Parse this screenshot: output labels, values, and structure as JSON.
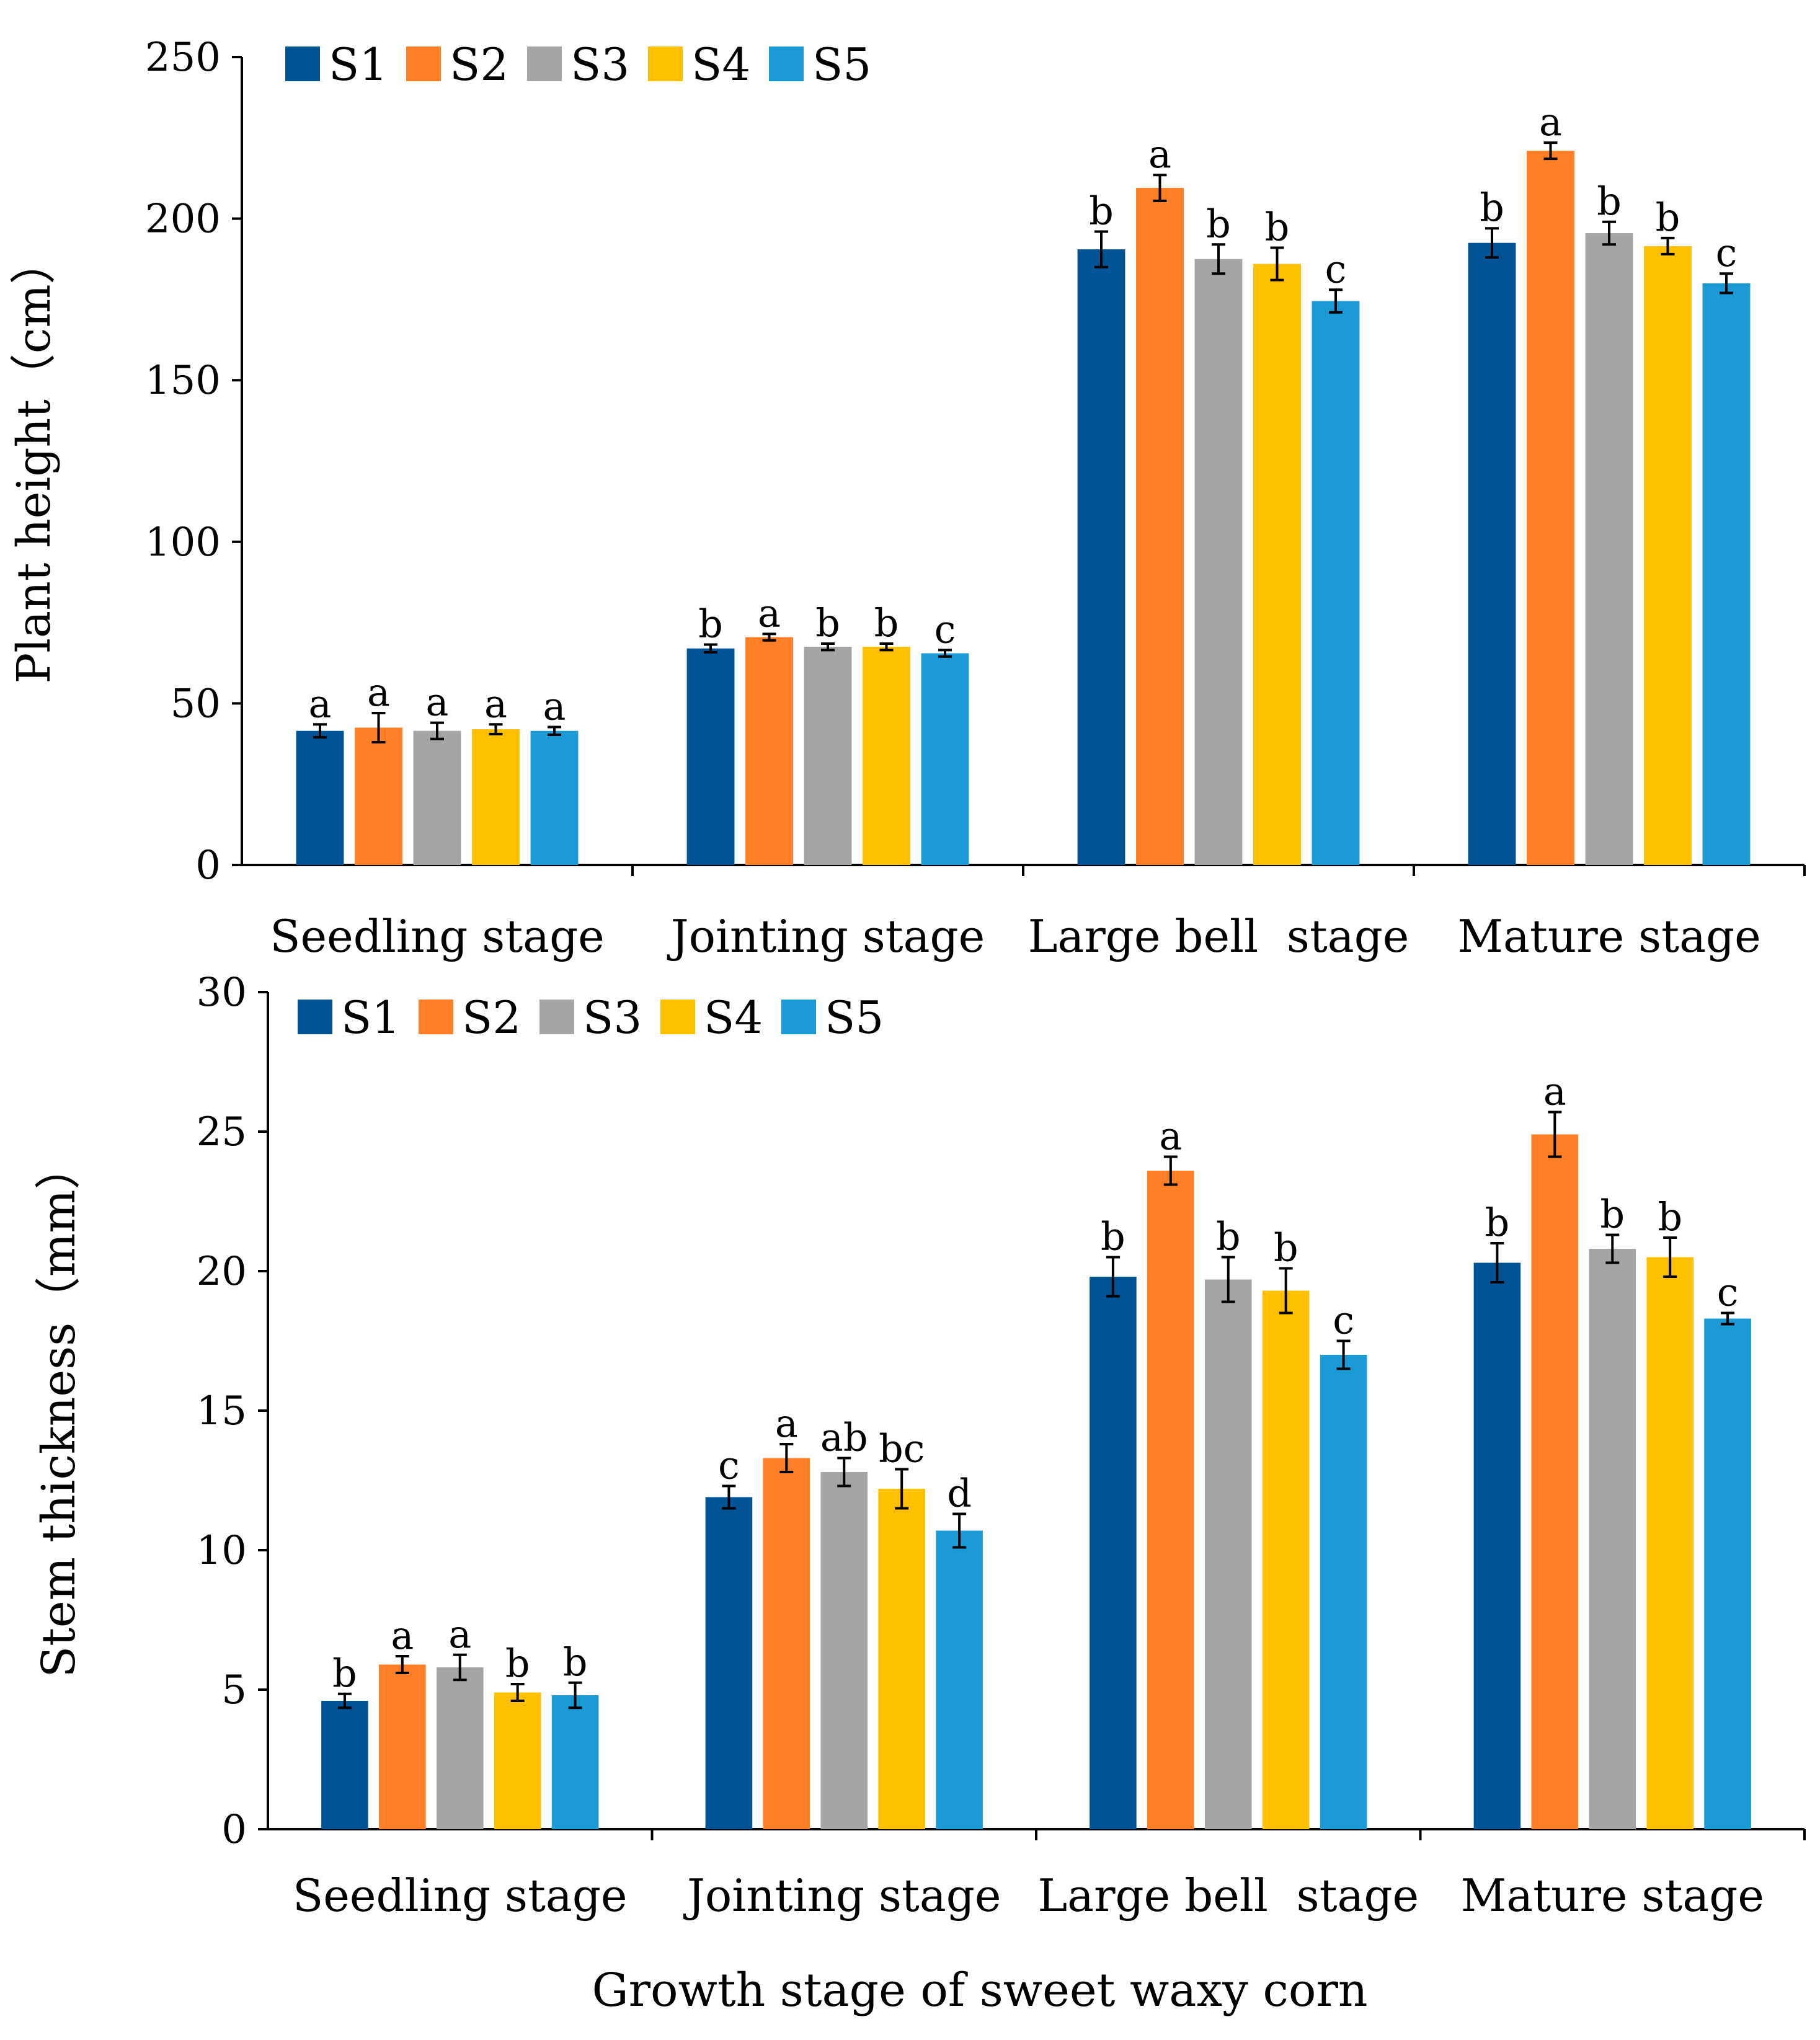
{
  "figure": {
    "xlabel": "Growth stage of sweet waxy corn"
  },
  "colors": {
    "S1": "#005496",
    "S2": "#ff7f27",
    "S3": "#a5a5a5",
    "S4": "#ffc000",
    "S5": "#1b9ad6",
    "axis": "#000000"
  },
  "chart_data": [
    {
      "type": "bar",
      "categories": [
        "Seedling stage",
        "Jointing stage",
        "Large bell  stage",
        "Mature stage"
      ],
      "series_names": [
        "S1",
        "S2",
        "S3",
        "S4",
        "S5"
      ],
      "series": [
        {
          "name": "S1",
          "values": [
            41.5,
            67,
            190.5,
            192.5
          ],
          "errors": [
            2.0,
            1.2,
            5.5,
            4.5
          ],
          "letters": [
            "a",
            "b",
            "b",
            "b"
          ]
        },
        {
          "name": "S2",
          "values": [
            42.5,
            70.5,
            209.5,
            221
          ],
          "errors": [
            4.5,
            1.0,
            4.0,
            2.5
          ],
          "letters": [
            "a",
            "a",
            "a",
            "a"
          ]
        },
        {
          "name": "S3",
          "values": [
            41.5,
            67.5,
            187.5,
            195.5
          ],
          "errors": [
            2.5,
            1.0,
            4.5,
            3.5
          ],
          "letters": [
            "a",
            "b",
            "b",
            "b"
          ]
        },
        {
          "name": "S4",
          "values": [
            42,
            67.5,
            186,
            191.5
          ],
          "errors": [
            1.5,
            1.0,
            5.0,
            2.5
          ],
          "letters": [
            "a",
            "b",
            "b",
            "b"
          ]
        },
        {
          "name": "S5",
          "values": [
            41.5,
            65.5,
            174.5,
            180
          ],
          "errors": [
            1.2,
            1.0,
            3.5,
            3.0
          ],
          "letters": [
            "a",
            "c",
            "c",
            "c"
          ]
        }
      ],
      "ylabel": "Plant height（cm）",
      "ylim": [
        0,
        250
      ],
      "yticks": [
        0,
        50,
        100,
        150,
        200,
        250
      ],
      "legend": "top-left",
      "grid": false
    },
    {
      "type": "bar",
      "categories": [
        "Seedling stage",
        "Jointing stage",
        "Large bell  stage",
        "Mature stage"
      ],
      "series_names": [
        "S1",
        "S2",
        "S3",
        "S4",
        "S5"
      ],
      "series": [
        {
          "name": "S1",
          "values": [
            4.6,
            11.9,
            19.8,
            20.3
          ],
          "errors": [
            0.25,
            0.4,
            0.7,
            0.7
          ],
          "letters": [
            "b",
            "c",
            "b",
            "b"
          ]
        },
        {
          "name": "S2",
          "values": [
            5.9,
            13.3,
            23.6,
            24.9
          ],
          "errors": [
            0.3,
            0.5,
            0.5,
            0.8
          ],
          "letters": [
            "a",
            "a",
            "a",
            "a"
          ]
        },
        {
          "name": "S3",
          "values": [
            5.8,
            12.8,
            19.7,
            20.8
          ],
          "errors": [
            0.45,
            0.5,
            0.8,
            0.5
          ],
          "letters": [
            "a",
            "ab",
            "b",
            "b"
          ]
        },
        {
          "name": "S4",
          "values": [
            4.9,
            12.2,
            19.3,
            20.5
          ],
          "errors": [
            0.3,
            0.7,
            0.8,
            0.7
          ],
          "letters": [
            "b",
            "bc",
            "b",
            "b"
          ]
        },
        {
          "name": "S5",
          "values": [
            4.8,
            10.7,
            17.0,
            18.3
          ],
          "errors": [
            0.45,
            0.6,
            0.5,
            0.2
          ],
          "letters": [
            "b",
            "d",
            "c",
            "c"
          ]
        }
      ],
      "ylabel": "Stem thickness（mm）",
      "ylim": [
        0,
        30
      ],
      "yticks": [
        0,
        5,
        10,
        15,
        20,
        25,
        30
      ],
      "legend": "top-left",
      "grid": false
    }
  ]
}
